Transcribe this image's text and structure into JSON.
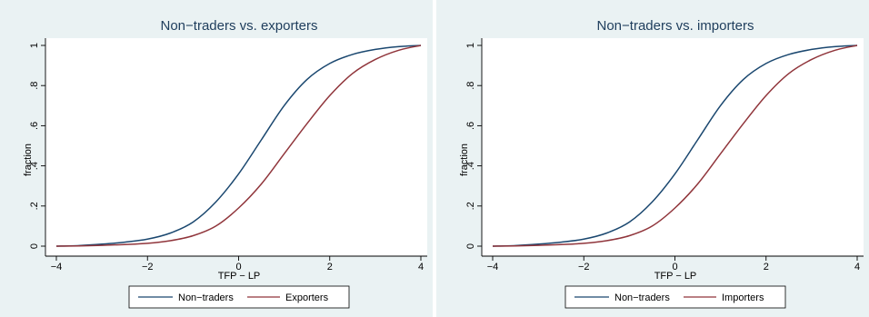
{
  "chart_data": [
    {
      "type": "line",
      "title": "Non−traders vs. exporters",
      "xlabel": "TFP − LP",
      "ylabel": "fraction",
      "xlim": [
        -4,
        4
      ],
      "ylim": [
        0,
        1
      ],
      "xticks": [
        -4,
        -2,
        0,
        2,
        4
      ],
      "xtick_labels": [
        "−4",
        "−2",
        "0",
        "2",
        "4"
      ],
      "yticks": [
        0,
        0.2,
        0.4,
        0.6,
        0.8,
        1
      ],
      "ytick_labels": [
        "0",
        ".2",
        ".4",
        ".6",
        ".8",
        "1"
      ],
      "grid": false,
      "legend_position": "bottom",
      "x": [
        -4,
        -3.5,
        -3,
        -2.5,
        -2,
        -1.5,
        -1,
        -0.5,
        0,
        0.5,
        1,
        1.5,
        2,
        2.5,
        3,
        3.5,
        4
      ],
      "series": [
        {
          "name": "Non−traders",
          "color": "#1a476f",
          "values": [
            0.0,
            0.003,
            0.01,
            0.02,
            0.035,
            0.065,
            0.12,
            0.22,
            0.36,
            0.53,
            0.7,
            0.83,
            0.91,
            0.955,
            0.98,
            0.994,
            1.0
          ]
        },
        {
          "name": "Exporters",
          "color": "#90353b",
          "values": [
            0.0,
            0.001,
            0.004,
            0.008,
            0.014,
            0.027,
            0.052,
            0.1,
            0.19,
            0.31,
            0.46,
            0.61,
            0.75,
            0.86,
            0.93,
            0.975,
            1.0
          ]
        }
      ]
    },
    {
      "type": "line",
      "title": "Non−traders vs. importers",
      "xlabel": "TFP − LP",
      "ylabel": "fraction",
      "xlim": [
        -4,
        4
      ],
      "ylim": [
        0,
        1
      ],
      "xticks": [
        -4,
        -2,
        0,
        2,
        4
      ],
      "xtick_labels": [
        "−4",
        "−2",
        "0",
        "2",
        "4"
      ],
      "yticks": [
        0,
        0.2,
        0.4,
        0.6,
        0.8,
        1
      ],
      "ytick_labels": [
        "0",
        ".2",
        ".4",
        ".6",
        ".8",
        "1"
      ],
      "grid": false,
      "legend_position": "bottom",
      "x": [
        -4,
        -3.5,
        -3,
        -2.5,
        -2,
        -1.5,
        -1,
        -0.5,
        0,
        0.5,
        1,
        1.5,
        2,
        2.5,
        3,
        3.5,
        4
      ],
      "series": [
        {
          "name": "Non−traders",
          "color": "#1a476f",
          "values": [
            0.0,
            0.003,
            0.01,
            0.02,
            0.035,
            0.065,
            0.12,
            0.22,
            0.36,
            0.53,
            0.7,
            0.83,
            0.91,
            0.955,
            0.98,
            0.994,
            1.0
          ]
        },
        {
          "name": "Importers",
          "color": "#90353b",
          "values": [
            0.0,
            0.001,
            0.004,
            0.008,
            0.014,
            0.027,
            0.052,
            0.1,
            0.19,
            0.31,
            0.46,
            0.61,
            0.75,
            0.86,
            0.93,
            0.975,
            1.0
          ]
        }
      ]
    }
  ]
}
